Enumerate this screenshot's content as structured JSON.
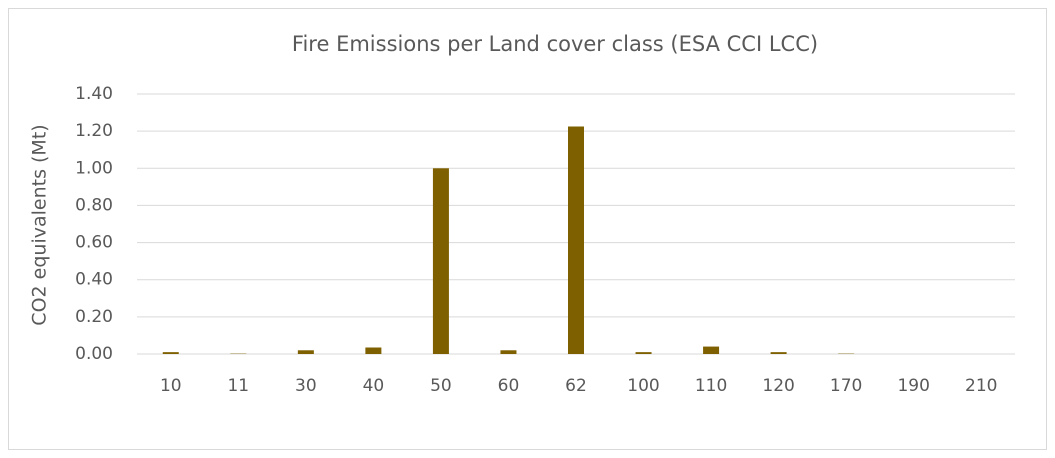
{
  "chart_data": {
    "type": "bar",
    "title": "Fire Emissions per Land cover class (ESA CCI LCC)",
    "y_label": "CO2 equivalents (Mt)",
    "categories": [
      "10",
      "11",
      "30",
      "40",
      "50",
      "60",
      "62",
      "100",
      "110",
      "120",
      "170",
      "190",
      "210"
    ],
    "values": [
      0.01,
      0.002,
      0.02,
      0.035,
      1.0,
      0.02,
      1.225,
      0.01,
      0.04,
      0.01,
      0.002,
      0,
      0
    ],
    "color": "#7f6000",
    "ylim": [
      0,
      1.4
    ],
    "yticks": [
      {
        "value": 0,
        "label": "0.00"
      },
      {
        "value": 0.2,
        "label": "0.20"
      },
      {
        "value": 0.4,
        "label": "0.40"
      },
      {
        "value": 0.6,
        "label": "0.60"
      },
      {
        "value": 0.8,
        "label": "0.80"
      },
      {
        "value": 1.0,
        "label": "1.00"
      },
      {
        "value": 1.2,
        "label": "1.20"
      },
      {
        "value": 1.4,
        "label": "1.40"
      }
    ],
    "grid": true
  }
}
